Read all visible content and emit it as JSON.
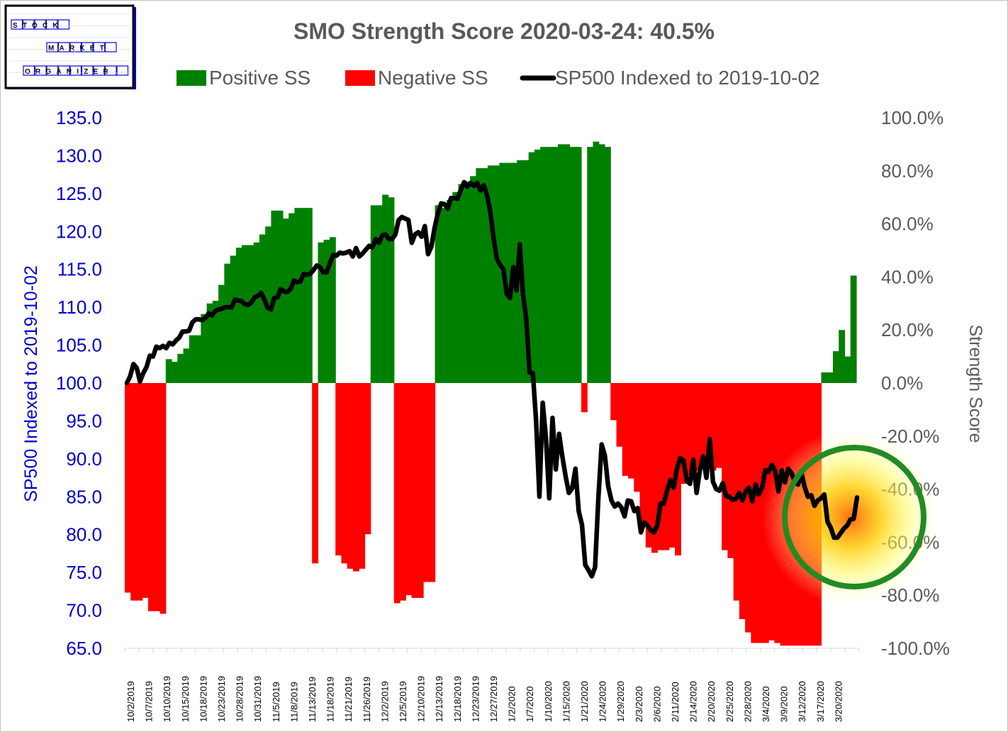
{
  "logo": {
    "lines": [
      "STOCK",
      "MARKET",
      "ORGANIZER"
    ]
  },
  "chart_data": {
    "type": "bar+line",
    "title": "SMO Strength Score 2020-03-24: 40.5%",
    "legend": {
      "placement": "top",
      "items": [
        {
          "label": "Positive SS",
          "color": "#008000",
          "kind": "bar"
        },
        {
          "label": "Negative SS",
          "color": "#ff0000",
          "kind": "bar"
        },
        {
          "label": "SP500 Indexed to 2019-10-02",
          "color": "#000000",
          "kind": "line"
        }
      ]
    },
    "left_axis": {
      "label": "SP500 Indexed to 2019-10-02",
      "range": [
        65,
        135
      ],
      "ticks": [
        "65.0",
        "70.0",
        "75.0",
        "80.0",
        "85.0",
        "90.0",
        "95.0",
        "100.0",
        "105.0",
        "110.0",
        "115.0",
        "120.0",
        "125.0",
        "130.0",
        "135.0"
      ],
      "color": "#0000cc"
    },
    "right_axis": {
      "label": "Strength Score",
      "range": [
        -100,
        100
      ],
      "ticks": [
        "-100.0%",
        "-80.0%",
        "-60.0%",
        "-40.0%",
        "-20.0%",
        "0.0%",
        "20.0%",
        "40.0%",
        "60.0%",
        "80.0%",
        "100.0%"
      ],
      "color": "#595959"
    },
    "x_labels": [
      "10/2/2019",
      "10/7/2019",
      "10/10/2019",
      "10/15/2019",
      "10/18/2019",
      "10/23/2019",
      "10/28/2019",
      "10/31/2019",
      "11/5/2019",
      "11/8/2019",
      "11/13/2019",
      "11/18/2019",
      "11/21/2019",
      "11/26/2019",
      "12/2/2019",
      "12/5/2019",
      "12/10/2019",
      "12/13/2019",
      "12/18/2019",
      "12/23/2019",
      "12/27/2019",
      "1/2/2020",
      "1/7/2020",
      "1/10/2020",
      "1/15/2020",
      "1/21/2020",
      "1/24/2020",
      "1/29/2020",
      "2/3/2020",
      "2/6/2020",
      "2/11/2020",
      "2/14/2020",
      "2/20/2020",
      "2/25/2020",
      "2/28/2020",
      "3/4/2020",
      "3/9/2020",
      "3/12/2020",
      "3/17/2020",
      "3/20/2020"
    ],
    "strength_score": [
      -79,
      -82,
      -82,
      -81,
      -86,
      -86,
      -87,
      9,
      8,
      11,
      13,
      18,
      18,
      26,
      30,
      31,
      37,
      45,
      48,
      51,
      52,
      52,
      53,
      56,
      59,
      65,
      65,
      62,
      64,
      66,
      66,
      66,
      -68,
      53,
      54,
      55,
      -65,
      -68,
      -70,
      -71,
      -70,
      -57,
      67,
      67,
      71,
      70,
      -83,
      -82,
      -80,
      -81,
      -81,
      -75,
      -75,
      67,
      66,
      69,
      72,
      75,
      76,
      78,
      81,
      81,
      82,
      82,
      83,
      83,
      83,
      84,
      84,
      87,
      88,
      89,
      89,
      89,
      90,
      90,
      89,
      89,
      -11,
      89,
      91,
      90,
      89,
      -14,
      -24,
      -35,
      -36,
      -41,
      -53,
      -62,
      -64,
      -63,
      -63,
      -62,
      -65,
      -38,
      -35,
      -33,
      -32,
      -32,
      -33,
      -32,
      -63,
      -66,
      -82,
      -89,
      -94,
      -98,
      -98,
      -98,
      -97,
      -98,
      -99,
      -99,
      -99,
      -99,
      -99,
      -99,
      -99,
      4,
      4,
      12,
      20,
      10,
      40.5
    ],
    "sp500_indexed": [
      100,
      100.9,
      102.5,
      102.0,
      100.2,
      101.3,
      102.1,
      103.6,
      103.5,
      104.8,
      104.6,
      104.9,
      104.6,
      105.3,
      105.1,
      105.6,
      106.0,
      106.8,
      106.8,
      106.9,
      108.0,
      108.4,
      108.4,
      108.3,
      108.6,
      109.2,
      108.9,
      109.5,
      109.7,
      109.8,
      110.0,
      110.0,
      110.0,
      111.0,
      110.9,
      110.8,
      110.4,
      110.3,
      110.6,
      111.3,
      111.5,
      111.9,
      111.0,
      109.9,
      109.7,
      111.2,
      111.3,
      112.4,
      112.1,
      112.0,
      112.4,
      113.5,
      113.3,
      113.4,
      114.4,
      114.3,
      114.4,
      114.9,
      115.5,
      115.3,
      114.6,
      114.6,
      115.8,
      116.9,
      116.8,
      117.2,
      117.1,
      117.2,
      117.4,
      116.7,
      117.8,
      116.7,
      117.1,
      117.6,
      118.1,
      117.9,
      119.0,
      118.5,
      119.5,
      119.6,
      119.0,
      119.0,
      119.6,
      121.5,
      121.9,
      121.7,
      121.5,
      118.5,
      119.6,
      119.9,
      119.3,
      120.7,
      117.0,
      118.0,
      120.5,
      122.4,
      123.7,
      123.6,
      123.0,
      124.4,
      124.4,
      124.3,
      125.5,
      126.5,
      125.9,
      126.4,
      126.0,
      126.4,
      125.4,
      126.1,
      124.8,
      122.6,
      119.1,
      116.4,
      115.6,
      115.0,
      111.8,
      111.2,
      115.3,
      112.2,
      118.3,
      111.7,
      108.3,
      101.4,
      101.3,
      94.9,
      85.0,
      97.4,
      92.7,
      84.8,
      95.4,
      88.6,
      93.3,
      90.3,
      87.7,
      85.5,
      86.1,
      88.7,
      83.1,
      81.3,
      76.0,
      75.3,
      74.5,
      75.7,
      84.8,
      91.9,
      90.4,
      86.4,
      84.5,
      83.7,
      84.1,
      83.6,
      82.4,
      84.5,
      84.4,
      83.1,
      83.5,
      80.3,
      81.6,
      81.2,
      80.6,
      80.3,
      81.2,
      84.1,
      84.1,
      85.8,
      87.2,
      86.2,
      88.7,
      90.1,
      89.8,
      87.1,
      86.7,
      89.9,
      85.5,
      88.5,
      90.3,
      87.5,
      92.6,
      87.0,
      86.0,
      85.8,
      86.8,
      85.1,
      85.0,
      84.6,
      84.7,
      85.5,
      84.5,
      85.7,
      86.2,
      84.4,
      86.6,
      85.3,
      86.2,
      88.5,
      88.3,
      89.2,
      88.4,
      85.7,
      88.5,
      86.9,
      88.7,
      88.1,
      87.0,
      86.6,
      88.2,
      86.3,
      85.0,
      85.2,
      83.8,
      84.5,
      84.8,
      85.3,
      81.7,
      80.9,
      79.6,
      79.6,
      80.2,
      80.8,
      81.2,
      82.0,
      82.1,
      84.9
    ],
    "highlight_circle": {
      "stroke_color": "#228b22",
      "glow_color": "#ffff66"
    }
  }
}
